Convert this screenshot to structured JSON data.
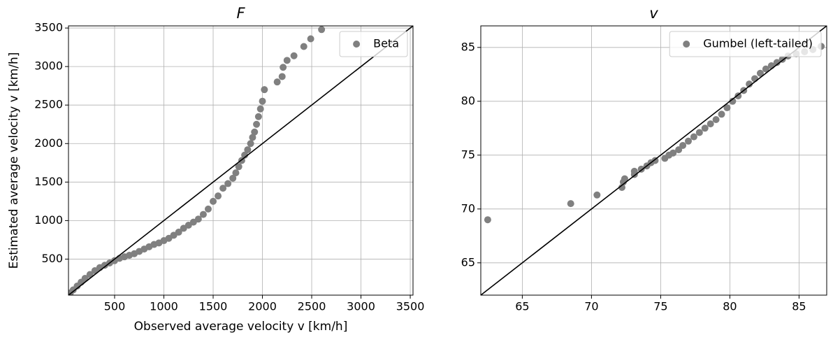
{
  "chart_data": [
    {
      "type": "scatter",
      "title": "F",
      "x_label": "Observed average velocity v [km/h]",
      "y_label": "Estimated average velocity v [km/h]",
      "xlim": [
        32,
        3528
      ],
      "ylim": [
        32,
        3528
      ],
      "xticks": [
        500,
        1000,
        1500,
        2000,
        2500,
        3000,
        3500
      ],
      "yticks": [
        500,
        1000,
        1500,
        2000,
        2500,
        3000,
        3500
      ],
      "grid": true,
      "diagonal": true,
      "legend": "upper right",
      "series": [
        {
          "name": "Beta",
          "color": "#808080",
          "x": [
            50,
            80,
            120,
            160,
            200,
            250,
            300,
            350,
            400,
            450,
            500,
            550,
            600,
            650,
            700,
            750,
            800,
            850,
            900,
            950,
            1000,
            1050,
            1100,
            1150,
            1200,
            1250,
            1300,
            1350,
            1400,
            1450,
            1500,
            1550,
            1600,
            1650,
            1700,
            1730,
            1760,
            1790,
            1820,
            1850,
            1880,
            1900,
            1920,
            1940,
            1960,
            1980,
            2000,
            2020,
            2150,
            2200,
            2210,
            2250,
            2320,
            2420,
            2490,
            2600
          ],
          "values": [
            60,
            100,
            150,
            200,
            250,
            300,
            350,
            390,
            420,
            450,
            480,
            510,
            530,
            550,
            570,
            600,
            630,
            660,
            690,
            710,
            740,
            770,
            810,
            850,
            900,
            940,
            980,
            1020,
            1080,
            1150,
            1250,
            1320,
            1420,
            1480,
            1550,
            1620,
            1700,
            1780,
            1850,
            1920,
            2000,
            2080,
            2150,
            2250,
            2350,
            2450,
            2550,
            2700,
            2800,
            2870,
            2990,
            3080,
            3140,
            3260,
            3360,
            3480
          ]
        }
      ]
    },
    {
      "type": "scatter",
      "title": "v",
      "xlim": [
        62,
        87
      ],
      "ylim": [
        62,
        87
      ],
      "xticks": [
        65,
        70,
        75,
        80,
        85
      ],
      "yticks": [
        65,
        70,
        75,
        80,
        85
      ],
      "grid": true,
      "diagonal": true,
      "legend": "upper right",
      "series": [
        {
          "name": "Gumbel (left-tailed)",
          "color": "#808080",
          "x": [
            62.5,
            68.5,
            70.4,
            72.2,
            72.3,
            72.4,
            73.1,
            73.1,
            73.6,
            74.0,
            74.3,
            74.6,
            75.3,
            75.6,
            75.9,
            76.3,
            76.6,
            77.0,
            77.4,
            77.8,
            78.2,
            78.6,
            79.0,
            79.4,
            79.8,
            80.2,
            80.6,
            81.0,
            81.4,
            81.8,
            82.2,
            82.6,
            83.0,
            83.4,
            83.8,
            84.2,
            84.8,
            85.4,
            86.0,
            86.6
          ],
          "values": [
            69.0,
            70.5,
            71.3,
            72.0,
            72.5,
            72.8,
            73.2,
            73.5,
            73.7,
            74.0,
            74.3,
            74.5,
            74.7,
            75.0,
            75.2,
            75.5,
            75.9,
            76.3,
            76.7,
            77.1,
            77.5,
            77.9,
            78.3,
            78.8,
            79.4,
            80.0,
            80.5,
            81.0,
            81.6,
            82.1,
            82.6,
            83.0,
            83.3,
            83.6,
            83.9,
            84.2,
            84.4,
            84.6,
            84.8,
            85.1
          ]
        }
      ]
    }
  ]
}
